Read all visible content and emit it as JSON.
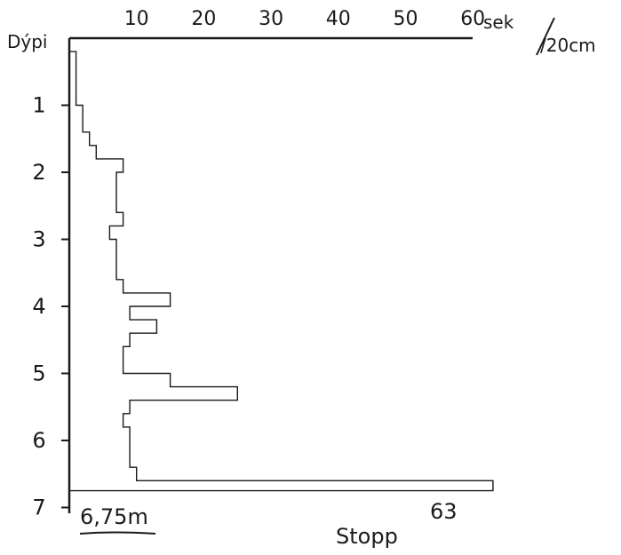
{
  "chart_data": {
    "type": "step",
    "orientation": "horizontal",
    "y_axis_title": "Dýpi",
    "x_unit": "sek",
    "x_unit_suffix": "/20cm",
    "x_ticks": [
      10,
      20,
      30,
      40,
      50,
      60
    ],
    "x_tick_labels": [
      "10",
      "20",
      "30",
      "40",
      "50",
      "60"
    ],
    "xlim": [
      0,
      60
    ],
    "y_ticks": [
      1,
      2,
      3,
      4,
      5,
      6,
      7
    ],
    "y_tick_labels": [
      "1",
      "2",
      "3",
      "4",
      "5",
      "6",
      "7"
    ],
    "ylim": [
      0,
      7
    ],
    "depth_bottom": [
      0.4,
      0.6,
      0.8,
      1.0,
      1.2,
      1.4,
      1.6,
      1.8,
      2.0,
      2.2,
      2.4,
      2.6,
      2.8,
      3.0,
      3.2,
      3.4,
      3.6,
      3.8,
      4.0,
      4.2,
      4.4,
      4.6,
      4.8,
      5.0,
      5.2,
      5.4,
      5.6,
      5.8,
      6.0,
      6.2,
      6.4,
      6.6,
      6.75
    ],
    "seconds": [
      1,
      1,
      1,
      1,
      2,
      2,
      3,
      4,
      8,
      7,
      7,
      7,
      8,
      6,
      7,
      7,
      7,
      8,
      15,
      9,
      13,
      9,
      8,
      8,
      15,
      25,
      9,
      8,
      9,
      9,
      9,
      10,
      63
    ],
    "annotations": {
      "final_depth": "6,75m",
      "final_value": "63",
      "stop_label": "Stopp"
    }
  },
  "colors": {
    "ink": "#1a1a1a",
    "background": "#ffffff"
  }
}
